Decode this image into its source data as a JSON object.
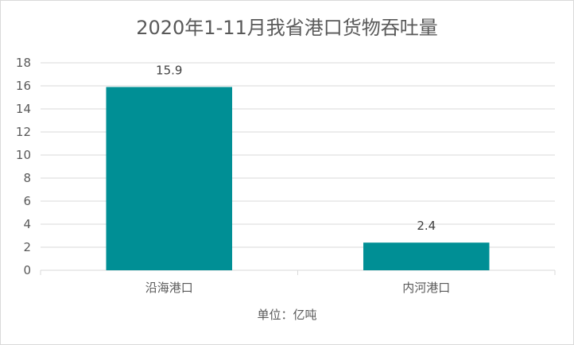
{
  "chart_data": {
    "type": "bar",
    "title": "2020年1-11月我省港口货物吞吐量",
    "categories": [
      "沿海港口",
      "内河港口"
    ],
    "values": [
      15.9,
      2.4
    ],
    "data_labels": [
      "15.9",
      "2.4"
    ],
    "ylim": [
      0,
      18
    ],
    "y_ticks": [
      0,
      2,
      4,
      6,
      8,
      10,
      12,
      14,
      16,
      18
    ],
    "grid": true,
    "legend": "none",
    "unit_note": "单位：亿吨",
    "colors": {
      "bar": "#008F95",
      "grid": "#D9D9D9",
      "text": "#595959"
    }
  }
}
